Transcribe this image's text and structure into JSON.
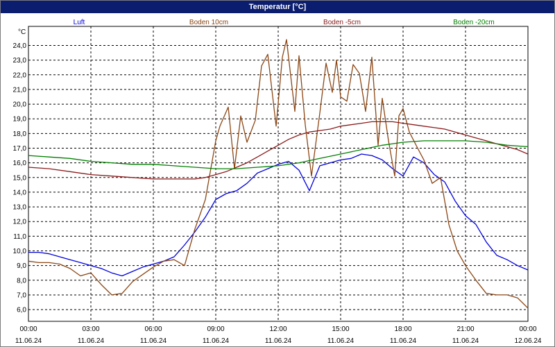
{
  "window": {
    "title": "Temperatur [°C]"
  },
  "chart_data": {
    "type": "line",
    "title": "Temperatur [°C]",
    "ylabel": "°C",
    "xlabel": "",
    "ylim": [
      5.2,
      25.3
    ],
    "xlim": [
      0,
      24
    ],
    "grid": true,
    "legend_position": "top",
    "y_ticks": [
      6,
      7,
      8,
      9,
      10,
      11,
      12,
      13,
      14,
      15,
      16,
      17,
      18,
      19,
      20,
      21,
      22,
      23,
      24
    ],
    "y_tick_labels": [
      "6,0",
      "7,0",
      "8,0",
      "9,0",
      "10,0",
      "11,0",
      "12,0",
      "13,0",
      "14,0",
      "15,0",
      "16,0",
      "17,0",
      "18,0",
      "19,0",
      "20,0",
      "21,0",
      "22,0",
      "23,0",
      "24,0"
    ],
    "x_ticks": [
      0,
      3,
      6,
      9,
      12,
      15,
      18,
      21,
      24
    ],
    "x_tick_labels": [
      {
        "time": "00:00",
        "date": "11.06.24"
      },
      {
        "time": "03:00",
        "date": "11.06.24"
      },
      {
        "time": "06:00",
        "date": "11.06.24"
      },
      {
        "time": "09:00",
        "date": "11.06.24"
      },
      {
        "time": "12:00",
        "date": "11.06.24"
      },
      {
        "time": "15:00",
        "date": "11.06.24"
      },
      {
        "time": "18:00",
        "date": "11.06.24"
      },
      {
        "time": "21:00",
        "date": "11.06.24"
      },
      {
        "time": "00:00",
        "date": "12.06.24"
      }
    ],
    "series": [
      {
        "name": "Luft",
        "color": "#0000dd",
        "x": [
          0,
          0.5,
          1,
          1.5,
          2,
          2.5,
          3,
          3.5,
          4,
          4.5,
          5,
          5.5,
          6,
          6.5,
          7,
          7.5,
          8,
          8.5,
          9,
          9.5,
          10,
          10.5,
          11,
          11.5,
          12,
          12.5,
          13,
          13.5,
          14,
          14.5,
          15,
          15.5,
          16,
          16.5,
          17,
          17.5,
          18,
          18.5,
          19,
          19.5,
          20,
          20.5,
          21,
          21.5,
          22,
          22.5,
          23,
          23.5,
          24
        ],
        "y": [
          9.9,
          9.9,
          9.8,
          9.6,
          9.4,
          9.2,
          9.0,
          8.8,
          8.5,
          8.3,
          8.6,
          8.9,
          9.1,
          9.3,
          9.6,
          10.4,
          11.3,
          12.3,
          13.5,
          13.9,
          14.1,
          14.6,
          15.3,
          15.6,
          15.9,
          16.1,
          15.5,
          14.1,
          15.8,
          16.0,
          16.2,
          16.3,
          16.6,
          16.5,
          16.2,
          15.6,
          15.1,
          16.4,
          16.0,
          15.2,
          14.7,
          13.4,
          12.4,
          11.8,
          10.6,
          9.7,
          9.4,
          9.0,
          8.7
        ]
      },
      {
        "name": "Boden 10cm",
        "color": "#8b4513",
        "x": [
          0,
          0.5,
          1,
          1.5,
          2,
          2.5,
          3,
          3.5,
          4,
          4.5,
          5,
          5.5,
          6,
          6.5,
          7,
          7.5,
          8,
          8.5,
          9,
          9.2,
          9.6,
          9.9,
          10.2,
          10.5,
          10.9,
          11.2,
          11.5,
          11.9,
          12.2,
          12.4,
          12.8,
          13.0,
          13.3,
          13.6,
          14.0,
          14.3,
          14.6,
          14.8,
          15.0,
          15.3,
          15.6,
          15.9,
          16.2,
          16.5,
          16.8,
          17.0,
          17.3,
          17.6,
          17.8,
          18.0,
          18.3,
          18.7,
          19.0,
          19.4,
          19.8,
          20.2,
          20.6,
          21,
          21.5,
          22,
          22.5,
          23,
          23.5,
          24
        ],
        "y": [
          9.3,
          9.2,
          9.2,
          9.1,
          8.8,
          8.3,
          8.5,
          7.7,
          7.0,
          7.1,
          7.9,
          8.4,
          8.9,
          9.3,
          9.4,
          9.0,
          11.5,
          13.5,
          17.5,
          18.5,
          19.8,
          15.6,
          19.2,
          17.4,
          18.9,
          22.6,
          23.4,
          18.5,
          23.2,
          24.4,
          19.5,
          23.3,
          18.6,
          15.1,
          19.4,
          22.8,
          20.8,
          23.0,
          20.5,
          20.2,
          22.7,
          22.1,
          19.5,
          23.2,
          17.2,
          20.4,
          17.5,
          15.1,
          19.2,
          19.7,
          18.1,
          17.0,
          16.2,
          14.6,
          15.0,
          11.8,
          10.0,
          9.0,
          8.0,
          7.1,
          7.0,
          7.0,
          6.8,
          6.1
        ]
      },
      {
        "name": "Boden -5cm",
        "color": "#8b1a1a",
        "x": [
          0,
          1,
          2,
          3,
          4,
          5,
          6,
          7,
          8,
          8.5,
          9,
          9.5,
          10,
          10.5,
          11,
          11.5,
          12,
          12.5,
          13,
          13.5,
          14,
          14.5,
          15,
          15.5,
          16,
          16.5,
          17,
          17.5,
          18,
          18.5,
          19,
          19.5,
          20,
          20.5,
          21,
          21.5,
          22,
          22.5,
          23,
          23.5,
          24
        ],
        "y": [
          15.7,
          15.6,
          15.4,
          15.2,
          15.1,
          15.0,
          14.9,
          14.9,
          14.9,
          15.0,
          15.2,
          15.4,
          15.7,
          16.0,
          16.4,
          16.8,
          17.2,
          17.6,
          17.9,
          18.1,
          18.2,
          18.3,
          18.5,
          18.6,
          18.7,
          18.8,
          18.8,
          18.8,
          18.7,
          18.6,
          18.5,
          18.4,
          18.3,
          18.1,
          17.9,
          17.7,
          17.5,
          17.3,
          17.1,
          16.9,
          16.6
        ]
      },
      {
        "name": "Boden -20cm",
        "color": "#008000",
        "x": [
          0,
          1,
          2,
          3,
          4,
          5,
          6,
          7,
          8,
          9,
          10,
          11,
          12,
          13,
          14,
          15,
          16,
          17,
          18,
          19,
          20,
          21,
          22,
          23,
          24
        ],
        "y": [
          16.5,
          16.4,
          16.3,
          16.1,
          16.0,
          15.9,
          15.9,
          15.8,
          15.7,
          15.6,
          15.6,
          15.7,
          15.8,
          16.0,
          16.3,
          16.6,
          16.9,
          17.2,
          17.4,
          17.5,
          17.5,
          17.5,
          17.4,
          17.2,
          17.1
        ]
      }
    ]
  }
}
